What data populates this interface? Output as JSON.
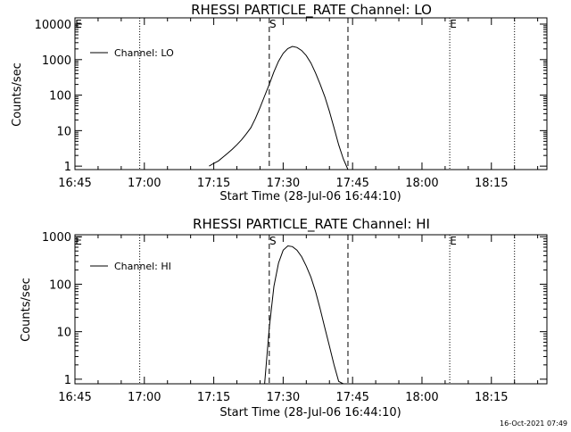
{
  "colors": {
    "background": "#ffffff",
    "foreground": "#000000"
  },
  "footer": {
    "timestamp": "16-Oct-2021 07:49"
  },
  "chart_data": [
    {
      "type": "line",
      "title": "RHESSI PARTICLE_RATE Channel: LO",
      "xlabel": "Start Time (28-Jul-06 16:44:10)",
      "ylabel": "Counts/sec",
      "yscale": "log",
      "xlim": [
        "16:45",
        "18:27"
      ],
      "ylim": [
        0.8,
        15000
      ],
      "xticks": [
        "16:45",
        "17:00",
        "17:15",
        "17:30",
        "17:45",
        "18:00",
        "18:15"
      ],
      "yticks": [
        {
          "value": 1,
          "label": "1"
        },
        {
          "value": 10,
          "label": "10"
        },
        {
          "value": 100,
          "label": "100"
        },
        {
          "value": 1000,
          "label": "1000"
        },
        {
          "value": 10000,
          "label": "10000"
        }
      ],
      "legend": {
        "position": "top-left",
        "entries": [
          "Channel: LO"
        ]
      },
      "markers": [
        {
          "time": "16:45",
          "label": "E",
          "style": "none"
        },
        {
          "time": "16:59",
          "label": "",
          "style": "dotted"
        },
        {
          "time": "17:27",
          "label": "S",
          "style": "dashed"
        },
        {
          "time": "17:44",
          "label": "",
          "style": "dashed"
        },
        {
          "time": "18:06",
          "label": "E",
          "style": "dotted"
        },
        {
          "time": "18:20",
          "label": "",
          "style": "dotted"
        }
      ],
      "series": [
        {
          "name": "Channel: LO",
          "x": [
            "17:14",
            "17:15",
            "17:16",
            "17:17",
            "17:18",
            "17:19",
            "17:20",
            "17:21",
            "17:22",
            "17:23",
            "17:24",
            "17:25",
            "17:26",
            "17:27",
            "17:28",
            "17:29",
            "17:30",
            "17:31",
            "17:32",
            "17:33",
            "17:34",
            "17:35",
            "17:36",
            "17:37",
            "17:38",
            "17:39",
            "17:40",
            "17:41",
            "17:42",
            "17:43",
            "17:44"
          ],
          "y": [
            1,
            1.2,
            1.4,
            1.8,
            2.3,
            3,
            4,
            5.5,
            8,
            12,
            22,
            45,
            95,
            200,
            450,
            900,
            1500,
            2050,
            2350,
            2200,
            1800,
            1300,
            800,
            420,
            200,
            90,
            35,
            12,
            4,
            1.6,
            0.8
          ]
        }
      ]
    },
    {
      "type": "line",
      "title": "RHESSI PARTICLE_RATE Channel: HI",
      "xlabel": "Start Time (28-Jul-06 16:44:10)",
      "ylabel": "Counts/sec",
      "yscale": "log",
      "xlim": [
        "16:45",
        "18:27"
      ],
      "ylim": [
        0.8,
        1100
      ],
      "xticks": [
        "16:45",
        "17:00",
        "17:15",
        "17:30",
        "17:45",
        "18:00",
        "18:15"
      ],
      "yticks": [
        {
          "value": 1,
          "label": "1"
        },
        {
          "value": 10,
          "label": "10"
        },
        {
          "value": 100,
          "label": "100"
        },
        {
          "value": 1000,
          "label": "1000"
        }
      ],
      "legend": {
        "position": "top-left",
        "entries": [
          "Channel: HI"
        ]
      },
      "markers": [
        {
          "time": "16:45",
          "label": "E",
          "style": "none"
        },
        {
          "time": "16:59",
          "label": "",
          "style": "dotted"
        },
        {
          "time": "17:27",
          "label": "S",
          "style": "dashed"
        },
        {
          "time": "17:44",
          "label": "",
          "style": "dashed"
        },
        {
          "time": "18:06",
          "label": "E",
          "style": "dotted"
        },
        {
          "time": "18:20",
          "label": "",
          "style": "dotted"
        }
      ],
      "series": [
        {
          "name": "Channel: HI",
          "x": [
            "17:26",
            "17:27",
            "17:28",
            "17:29",
            "17:30",
            "17:31",
            "17:32",
            "17:33",
            "17:34",
            "17:35",
            "17:36",
            "17:37",
            "17:38",
            "17:39",
            "17:40",
            "17:41",
            "17:42",
            "17:43"
          ],
          "y": [
            0.8,
            12,
            90,
            280,
            520,
            640,
            620,
            520,
            380,
            240,
            140,
            70,
            30,
            12,
            5,
            2,
            0.9,
            0.8
          ]
        }
      ]
    }
  ]
}
